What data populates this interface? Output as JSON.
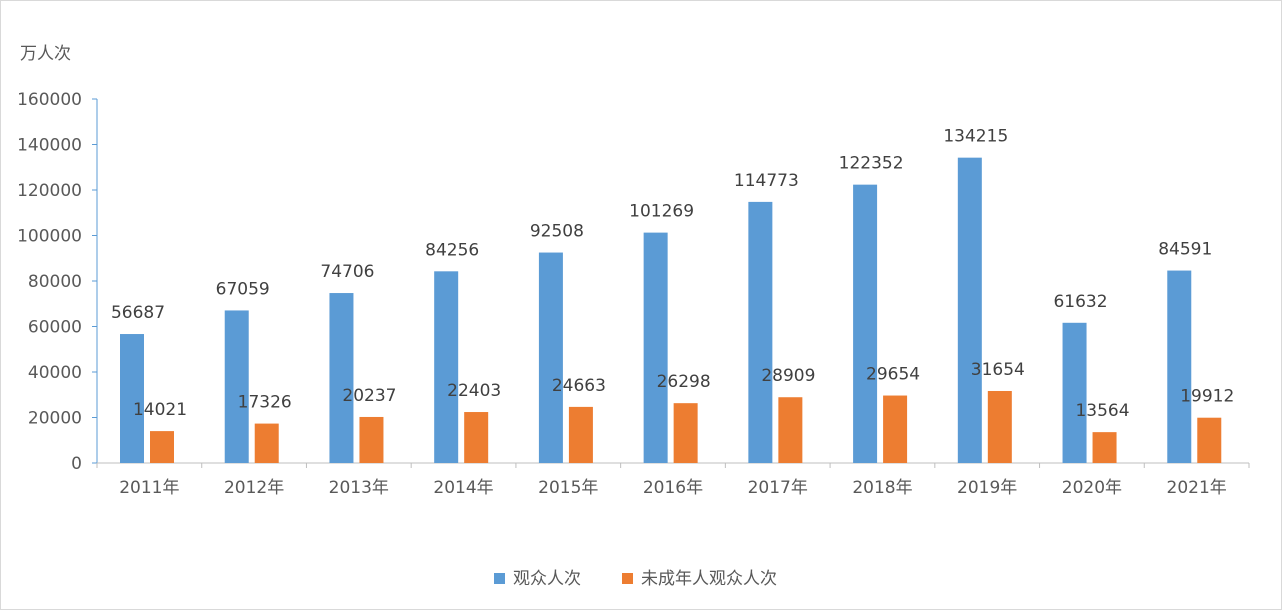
{
  "chart_data": {
    "type": "bar",
    "unit_label": "万人次",
    "categories": [
      "2011年",
      "2012年",
      "2013年",
      "2014年",
      "2015年",
      "2016年",
      "2017年",
      "2018年",
      "2019年",
      "2020年",
      "2021年"
    ],
    "series": [
      {
        "name": "观众人次",
        "color": "#5b9bd5",
        "values": [
          56687,
          67059,
          74706,
          84256,
          92508,
          101269,
          114773,
          122352,
          134215,
          61632,
          84591
        ]
      },
      {
        "name": "未成年人观众人次",
        "color": "#ed7d31",
        "values": [
          14021,
          17326,
          20237,
          22403,
          24663,
          26298,
          28909,
          29654,
          31654,
          13564,
          19912
        ]
      }
    ],
    "ylim": [
      0,
      160000
    ],
    "yticks": [
      0,
      20000,
      40000,
      60000,
      80000,
      100000,
      120000,
      140000,
      160000
    ],
    "grid": false,
    "data_labels": true,
    "legend_position": "bottom"
  }
}
